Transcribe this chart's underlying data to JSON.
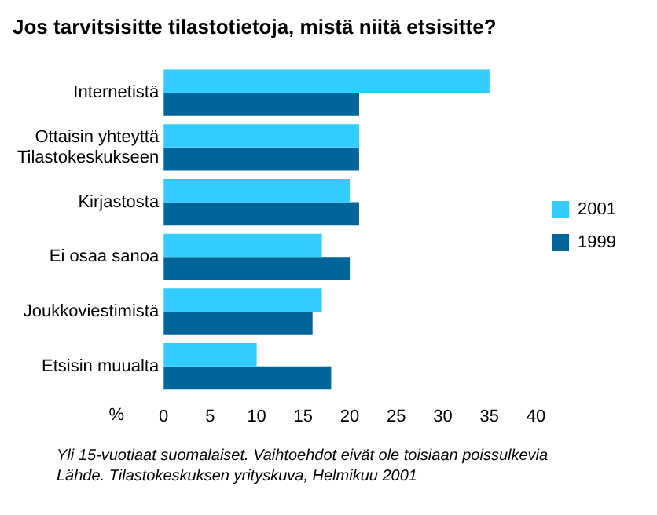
{
  "chart_data": {
    "type": "bar",
    "orientation": "horizontal",
    "title": "Jos tarvitsisitte tilastotietoja, mistä niitä etsisitte?",
    "xlabel": "%",
    "categories": [
      "Internetistä",
      "Ottaisin yhteyttä\nTilastokeskukseen",
      "Kirjastosta",
      "Ei osaa sanoa",
      "Joukkoviestimistä",
      "Etsisin muualta"
    ],
    "series": [
      {
        "name": "2001",
        "color": "#33ccff",
        "values": [
          35,
          21,
          20,
          17,
          17,
          10
        ]
      },
      {
        "name": "1999",
        "color": "#006699",
        "values": [
          21,
          21,
          21,
          20,
          16,
          18
        ]
      }
    ],
    "xlim": [
      0,
      40
    ],
    "xticks": [
      0,
      5,
      10,
      15,
      20,
      25,
      30,
      35,
      40
    ],
    "grid": false,
    "legend": "right",
    "annotations": [
      "Yli 15-vuotiaat suomalaiset. Vaihtoehdot eivät ole toisiaan poissulkevia",
      "Lähde. Tilastokeskuksen yrityskuva, Helmikuu 2001"
    ]
  }
}
